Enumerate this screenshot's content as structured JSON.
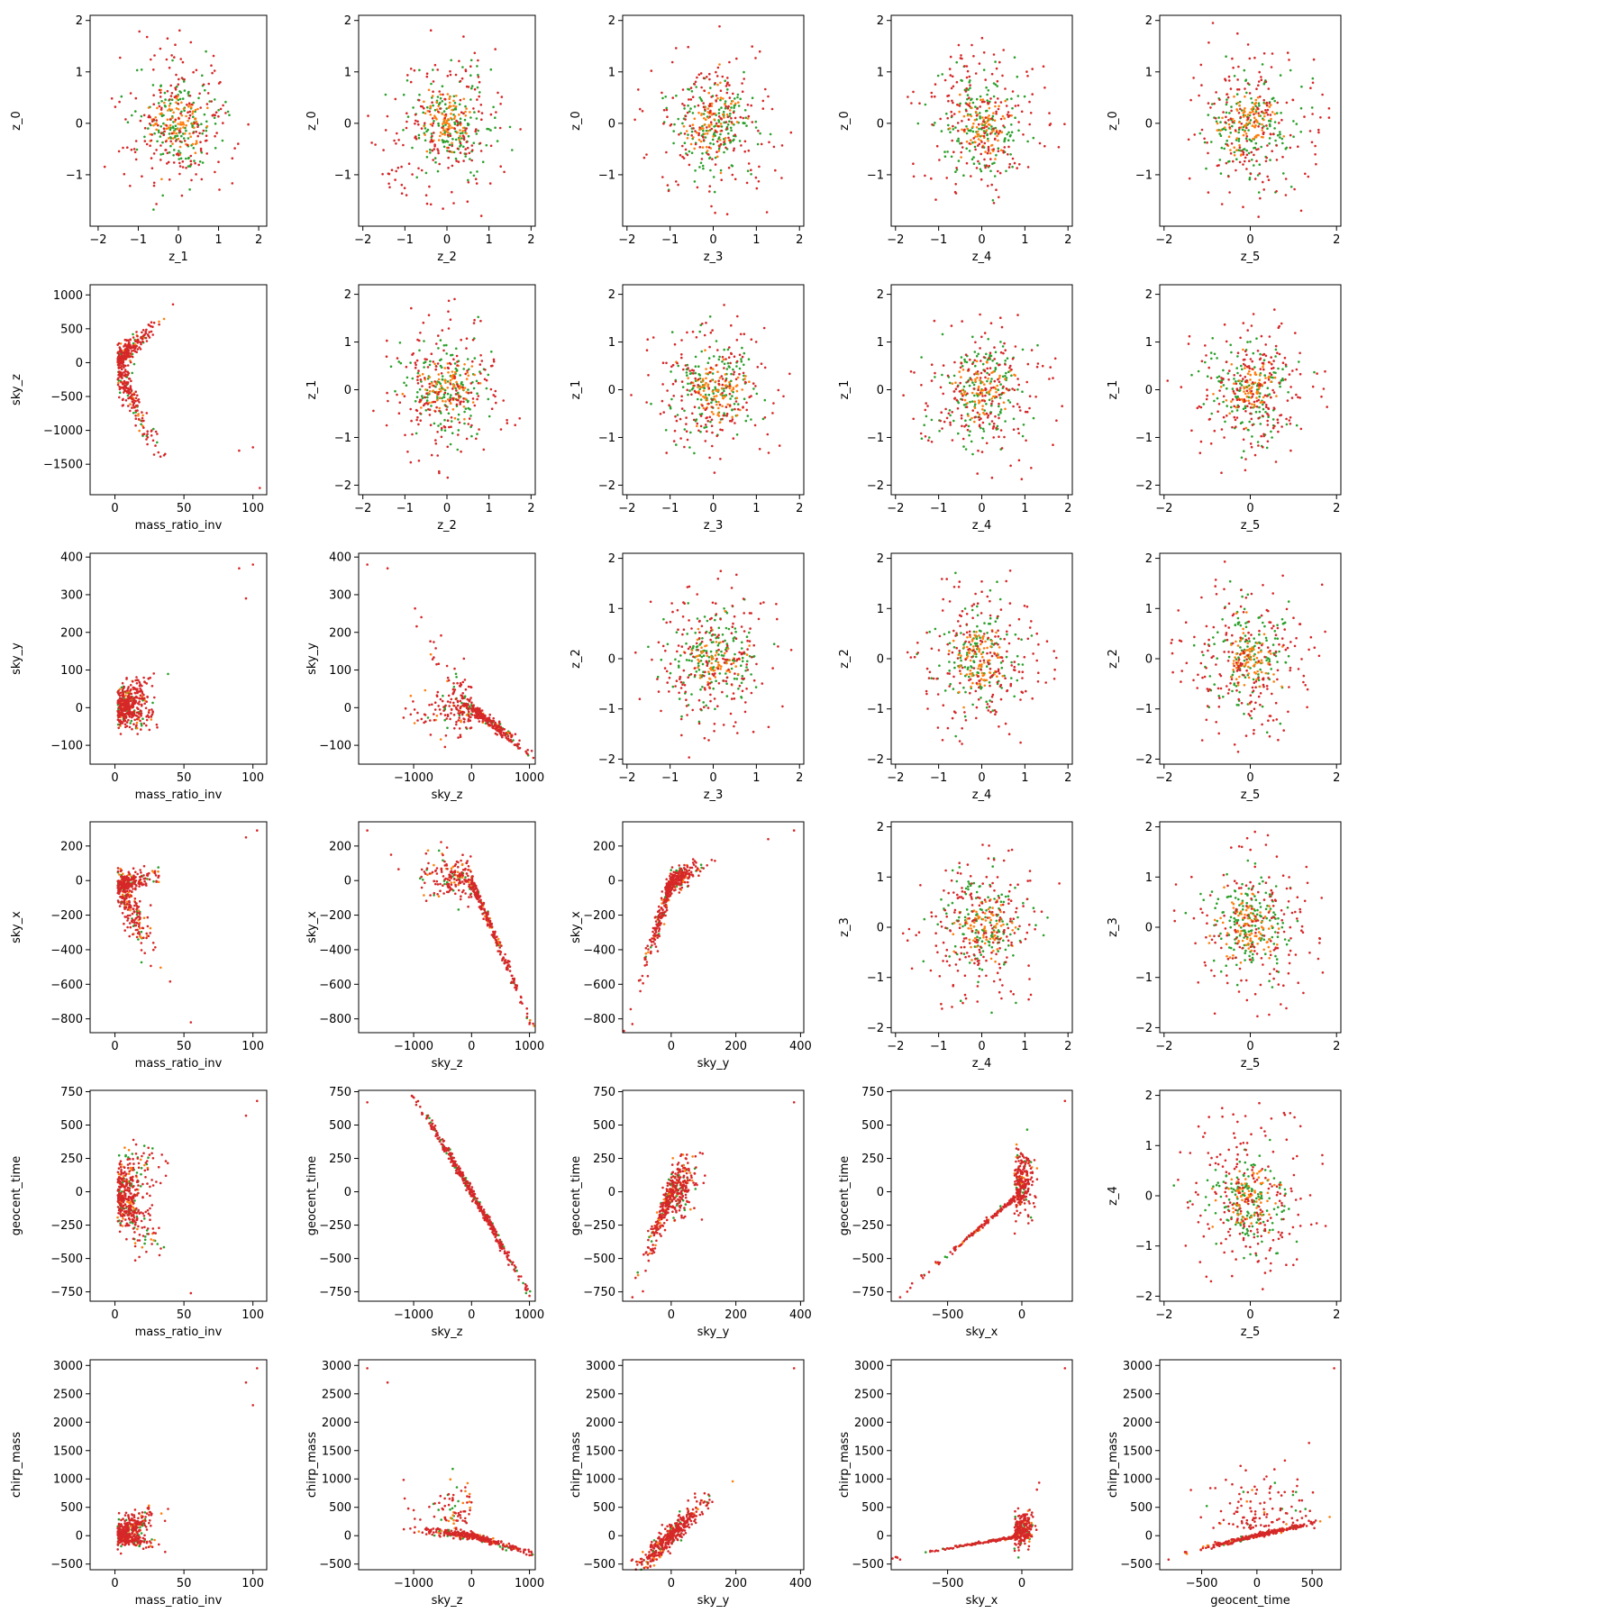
{
  "figure": {
    "colors": {
      "green": "#2ca02c",
      "orange": "#ff7f0e",
      "red": "#d62728"
    },
    "grid": false,
    "legend": "none"
  },
  "variables": {
    "z_0": {
      "label": "z_0",
      "ticks": [
        -1,
        0,
        1,
        2
      ],
      "tick_labels": [
        "−1",
        "0",
        "1",
        "2"
      ]
    },
    "z_1": {
      "label": "z_1",
      "ticks": [
        -2,
        -1,
        0,
        1,
        2
      ],
      "tick_labels": [
        "−2",
        "−1",
        "0",
        "1",
        "2"
      ]
    },
    "z_2": {
      "label": "z_2",
      "ticks": [
        -2,
        -1,
        0,
        1,
        2
      ],
      "tick_labels": [
        "−2",
        "−1",
        "0",
        "1",
        "2"
      ]
    },
    "z_3": {
      "label": "z_3",
      "ticks": [
        -2,
        -1,
        0,
        1,
        2
      ],
      "tick_labels": [
        "−2",
        "−1",
        "0",
        "1",
        "2"
      ]
    },
    "z_4": {
      "label": "z_4",
      "ticks": [
        -2,
        -1,
        0,
        1,
        2
      ],
      "tick_labels": [
        "−2",
        "−1",
        "0",
        "1",
        "2"
      ]
    },
    "z_5": {
      "label": "z_5",
      "ticks": [
        -2,
        0,
        2
      ],
      "tick_labels": [
        "−2",
        "0",
        "2"
      ]
    },
    "mass_ratio_inv": {
      "label": "mass_ratio_inv",
      "ticks": [
        0,
        50,
        100
      ],
      "tick_labels": [
        "0",
        "50",
        "100"
      ]
    },
    "sky_z": {
      "label": "sky_z",
      "ticks": [
        -1000,
        0,
        1000
      ],
      "tick_labels": [
        "−1000",
        "0",
        "1000"
      ]
    },
    "sky_y": {
      "label": "sky_y",
      "ticks": [
        0,
        200,
        400
      ],
      "tick_labels": [
        "0",
        "200",
        "400"
      ]
    },
    "sky_x": {
      "label": "sky_x",
      "ticks": [
        -500,
        0
      ],
      "tick_labels": [
        "−500",
        "0"
      ]
    },
    "geocent_time": {
      "label": "geocent_time",
      "ticks": [
        -500,
        0,
        500
      ],
      "tick_labels": [
        "−500",
        "0",
        "500"
      ]
    },
    "chirp_mass": {
      "label": "chirp_mass"
    }
  },
  "row_ticks": {
    "sky_z": {
      "ticks": [
        -1500,
        -1000,
        -500,
        0,
        500,
        1000
      ],
      "tick_labels": [
        "−1500",
        "−1000",
        "−500",
        "0",
        "500",
        "1000"
      ]
    },
    "sky_y": {
      "ticks": [
        -100,
        0,
        100,
        200,
        300,
        400
      ],
      "tick_labels": [
        "−100",
        "0",
        "100",
        "200",
        "300",
        "400"
      ]
    },
    "sky_x": {
      "ticks": [
        -800,
        -600,
        -400,
        -200,
        0,
        200
      ],
      "tick_labels": [
        "−800",
        "−600",
        "−400",
        "−200",
        "0",
        "200"
      ]
    },
    "geocent_time": {
      "ticks": [
        -750,
        -500,
        -250,
        0,
        250,
        500,
        750
      ],
      "tick_labels": [
        "−750",
        "−500",
        "−250",
        "0",
        "250",
        "500",
        "750"
      ]
    },
    "chirp_mass": {
      "ticks": [
        -500,
        0,
        500,
        1000,
        1500,
        2000,
        2500,
        3000
      ],
      "tick_labels": [
        "−500",
        "0",
        "500",
        "1000",
        "1500",
        "2000",
        "2500",
        "3000"
      ]
    },
    "z_0": {
      "ticks": [
        -1,
        0,
        1,
        2
      ],
      "tick_labels": [
        "−1",
        "0",
        "1",
        "2"
      ]
    },
    "z_1": {
      "ticks": [
        -2,
        -1,
        0,
        1,
        2
      ],
      "tick_labels": [
        "−2",
        "−1",
        "0",
        "1",
        "2"
      ]
    },
    "z_2": {
      "ticks": [
        -2,
        -1,
        0,
        1,
        2
      ],
      "tick_labels": [
        "−2",
        "−1",
        "0",
        "1",
        "2"
      ]
    },
    "z_3": {
      "ticks": [
        -2,
        -1,
        0,
        1,
        2
      ],
      "tick_labels": [
        "−2",
        "−1",
        "0",
        "1",
        "2"
      ]
    },
    "z_4": {
      "ticks": [
        -2,
        -1,
        0,
        1,
        2
      ],
      "tick_labels": [
        "−2",
        "−1",
        "0",
        "1",
        "2"
      ]
    }
  },
  "chart_data": [
    {
      "type": "scatter",
      "x_var": "z_1",
      "y_var": "z_0",
      "xlabel": "z_1",
      "ylabel": "z_0",
      "xlim": [
        -2.2,
        2.2
      ],
      "ylim": [
        -2.0,
        2.1
      ],
      "pattern": "isotropic"
    },
    {
      "type": "scatter",
      "x_var": "z_2",
      "y_var": "z_0",
      "xlabel": "z_2",
      "ylabel": "z_0",
      "xlim": [
        -2.1,
        2.1
      ],
      "ylim": [
        -2.0,
        2.1
      ],
      "pattern": "isotropic"
    },
    {
      "type": "scatter",
      "x_var": "z_3",
      "y_var": "z_0",
      "xlabel": "z_3",
      "ylabel": "z_0",
      "xlim": [
        -2.1,
        2.1
      ],
      "ylim": [
        -2.0,
        2.1
      ],
      "pattern": "isotropic"
    },
    {
      "type": "scatter",
      "x_var": "z_4",
      "y_var": "z_0",
      "xlabel": "z_4",
      "ylabel": "z_0",
      "xlim": [
        -2.1,
        2.1
      ],
      "ylim": [
        -2.0,
        2.1
      ],
      "pattern": "isotropic"
    },
    {
      "type": "scatter",
      "x_var": "z_5",
      "y_var": "z_0",
      "xlabel": "z_5",
      "ylabel": "z_0",
      "xlim": [
        -2.1,
        2.1
      ],
      "ylim": [
        -2.0,
        2.1
      ],
      "pattern": "isotropic"
    },
    {
      "type": "scatter",
      "x_var": "mass_ratio_inv",
      "y_var": "sky_z",
      "xlabel": "mass_ratio_inv",
      "ylabel": "sky_z",
      "xlim": [
        -18,
        110
      ],
      "ylim": [
        -1950,
        1150
      ],
      "pattern": "mri_skyz"
    },
    {
      "type": "scatter",
      "x_var": "z_2",
      "y_var": "z_1",
      "xlabel": "z_2",
      "ylabel": "z_1",
      "xlim": [
        -2.1,
        2.1
      ],
      "ylim": [
        -2.2,
        2.2
      ],
      "pattern": "isotropic"
    },
    {
      "type": "scatter",
      "x_var": "z_3",
      "y_var": "z_1",
      "xlabel": "z_3",
      "ylabel": "z_1",
      "xlim": [
        -2.1,
        2.1
      ],
      "ylim": [
        -2.2,
        2.2
      ],
      "pattern": "isotropic"
    },
    {
      "type": "scatter",
      "x_var": "z_4",
      "y_var": "z_1",
      "xlabel": "z_4",
      "ylabel": "z_1",
      "xlim": [
        -2.1,
        2.1
      ],
      "ylim": [
        -2.2,
        2.2
      ],
      "pattern": "isotropic"
    },
    {
      "type": "scatter",
      "x_var": "z_5",
      "y_var": "z_1",
      "xlabel": "z_5",
      "ylabel": "z_1",
      "xlim": [
        -2.1,
        2.1
      ],
      "ylim": [
        -2.2,
        2.2
      ],
      "pattern": "isotropic"
    },
    {
      "type": "scatter",
      "x_var": "mass_ratio_inv",
      "y_var": "sky_y",
      "xlabel": "mass_ratio_inv",
      "ylabel": "sky_y",
      "xlim": [
        -18,
        110
      ],
      "ylim": [
        -150,
        410
      ],
      "pattern": "mri_skyy"
    },
    {
      "type": "scatter",
      "x_var": "sky_z",
      "y_var": "sky_y",
      "xlabel": "sky_z",
      "ylabel": "sky_y",
      "xlim": [
        -1950,
        1100
      ],
      "ylim": [
        -150,
        410
      ],
      "pattern": "skyz_skyy"
    },
    {
      "type": "scatter",
      "x_var": "z_3",
      "y_var": "z_2",
      "xlabel": "z_3",
      "ylabel": "z_2",
      "xlim": [
        -2.1,
        2.1
      ],
      "ylim": [
        -2.1,
        2.1
      ],
      "pattern": "isotropic"
    },
    {
      "type": "scatter",
      "x_var": "z_4",
      "y_var": "z_2",
      "xlabel": "z_4",
      "ylabel": "z_2",
      "xlim": [
        -2.1,
        2.1
      ],
      "ylim": [
        -2.1,
        2.1
      ],
      "pattern": "isotropic"
    },
    {
      "type": "scatter",
      "x_var": "z_5",
      "y_var": "z_2",
      "xlabel": "z_5",
      "ylabel": "z_2",
      "xlim": [
        -2.1,
        2.1
      ],
      "ylim": [
        -2.1,
        2.1
      ],
      "pattern": "isotropic"
    },
    {
      "type": "scatter",
      "x_var": "mass_ratio_inv",
      "y_var": "sky_x",
      "xlabel": "mass_ratio_inv",
      "ylabel": "sky_x",
      "xlim": [
        -18,
        110
      ],
      "ylim": [
        -880,
        340
      ],
      "pattern": "mri_skyx"
    },
    {
      "type": "scatter",
      "x_var": "sky_z",
      "y_var": "sky_x",
      "xlabel": "sky_z",
      "ylabel": "sky_x",
      "xlim": [
        -1950,
        1100
      ],
      "ylim": [
        -880,
        340
      ],
      "pattern": "skyz_skyx"
    },
    {
      "type": "scatter",
      "x_var": "sky_y",
      "y_var": "sky_x",
      "xlabel": "sky_y",
      "ylabel": "sky_x",
      "xlim": [
        -150,
        410
      ],
      "ylim": [
        -880,
        340
      ],
      "pattern": "skyy_skyx"
    },
    {
      "type": "scatter",
      "x_var": "z_4",
      "y_var": "z_3",
      "xlabel": "z_4",
      "ylabel": "z_3",
      "xlim": [
        -2.1,
        2.1
      ],
      "ylim": [
        -2.1,
        2.1
      ],
      "pattern": "isotropic"
    },
    {
      "type": "scatter",
      "x_var": "z_5",
      "y_var": "z_3",
      "xlabel": "z_5",
      "ylabel": "z_3",
      "xlim": [
        -2.1,
        2.1
      ],
      "ylim": [
        -2.1,
        2.1
      ],
      "pattern": "isotropic"
    },
    {
      "type": "scatter",
      "x_var": "mass_ratio_inv",
      "y_var": "geocent_time",
      "xlabel": "mass_ratio_inv",
      "ylabel": "geocent_time",
      "xlim": [
        -18,
        110
      ],
      "ylim": [
        -820,
        760
      ],
      "pattern": "mri_gt"
    },
    {
      "type": "scatter",
      "x_var": "sky_z",
      "y_var": "geocent_time",
      "xlabel": "sky_z",
      "ylabel": "geocent_time",
      "xlim": [
        -1950,
        1100
      ],
      "ylim": [
        -820,
        760
      ],
      "pattern": "skyz_gt"
    },
    {
      "type": "scatter",
      "x_var": "sky_y",
      "y_var": "geocent_time",
      "xlabel": "sky_y",
      "ylabel": "geocent_time",
      "xlim": [
        -150,
        410
      ],
      "ylim": [
        -820,
        760
      ],
      "pattern": "skyy_gt"
    },
    {
      "type": "scatter",
      "x_var": "sky_x",
      "y_var": "geocent_time",
      "xlabel": "sky_x",
      "ylabel": "geocent_time",
      "xlim": [
        -880,
        340
      ],
      "ylim": [
        -820,
        760
      ],
      "pattern": "skyx_gt"
    },
    {
      "type": "scatter",
      "x_var": "z_5",
      "y_var": "z_4",
      "xlabel": "z_5",
      "ylabel": "z_4",
      "xlim": [
        -2.1,
        2.1
      ],
      "ylim": [
        -2.1,
        2.1
      ],
      "pattern": "isotropic"
    },
    {
      "type": "scatter",
      "x_var": "mass_ratio_inv",
      "y_var": "chirp_mass",
      "xlabel": "mass_ratio_inv",
      "ylabel": "chirp_mass",
      "xlim": [
        -18,
        110
      ],
      "ylim": [
        -600,
        3100
      ],
      "pattern": "mri_cm"
    },
    {
      "type": "scatter",
      "x_var": "sky_z",
      "y_var": "chirp_mass",
      "xlabel": "sky_z",
      "ylabel": "chirp_mass",
      "xlim": [
        -1950,
        1100
      ],
      "ylim": [
        -600,
        3100
      ],
      "pattern": "skyz_cm"
    },
    {
      "type": "scatter",
      "x_var": "sky_y",
      "y_var": "chirp_mass",
      "xlabel": "sky_y",
      "ylabel": "chirp_mass",
      "xlim": [
        -150,
        410
      ],
      "ylim": [
        -600,
        3100
      ],
      "pattern": "skyy_cm"
    },
    {
      "type": "scatter",
      "x_var": "sky_x",
      "y_var": "chirp_mass",
      "xlabel": "sky_x",
      "ylabel": "chirp_mass",
      "xlim": [
        -880,
        340
      ],
      "ylim": [
        -600,
        3100
      ],
      "pattern": "skyx_cm"
    },
    {
      "type": "scatter",
      "x_var": "geocent_time",
      "y_var": "chirp_mass",
      "xlabel": "geocent_time",
      "ylabel": "chirp_mass",
      "xlim": [
        -880,
        760
      ],
      "ylim": [
        -600,
        3100
      ],
      "pattern": "gt_cm"
    }
  ]
}
